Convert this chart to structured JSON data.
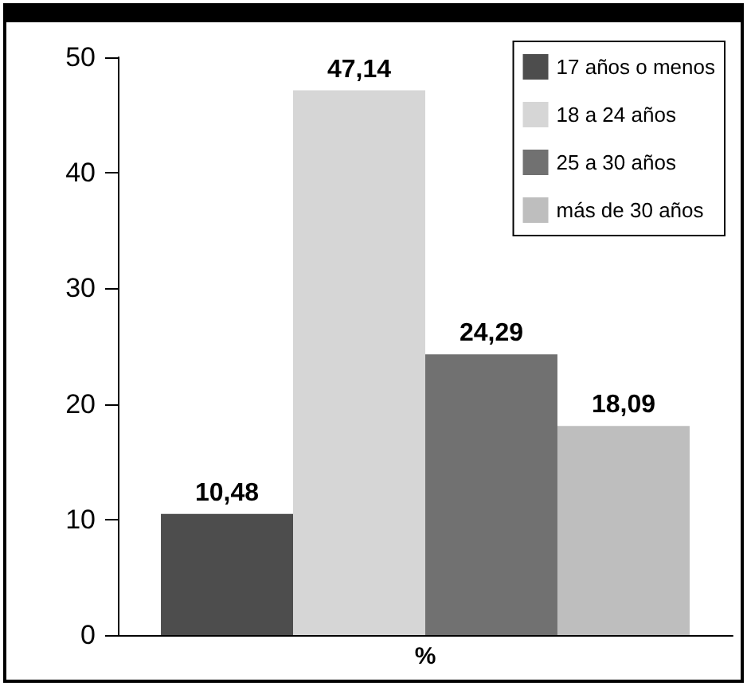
{
  "chart_data": {
    "type": "bar",
    "categories": [
      "%"
    ],
    "series": [
      {
        "name": "17 años o menos",
        "color": "#4d4d4d",
        "values": [
          10.48
        ],
        "value_labels": [
          "10,48"
        ]
      },
      {
        "name": "18 a 24 años",
        "color": "#d6d6d6",
        "values": [
          47.14
        ],
        "value_labels": [
          "47,14"
        ]
      },
      {
        "name": "25 a 30 años",
        "color": "#717171",
        "values": [
          24.29
        ],
        "value_labels": [
          "24,29"
        ]
      },
      {
        "name": "más de 30 años",
        "color": "#bebebe",
        "values": [
          18.09
        ],
        "value_labels": [
          "18,09"
        ]
      }
    ],
    "ylim": [
      0,
      50
    ],
    "yticks": [
      0,
      10,
      20,
      30,
      40,
      50
    ],
    "grid": false,
    "legend": "top right"
  }
}
